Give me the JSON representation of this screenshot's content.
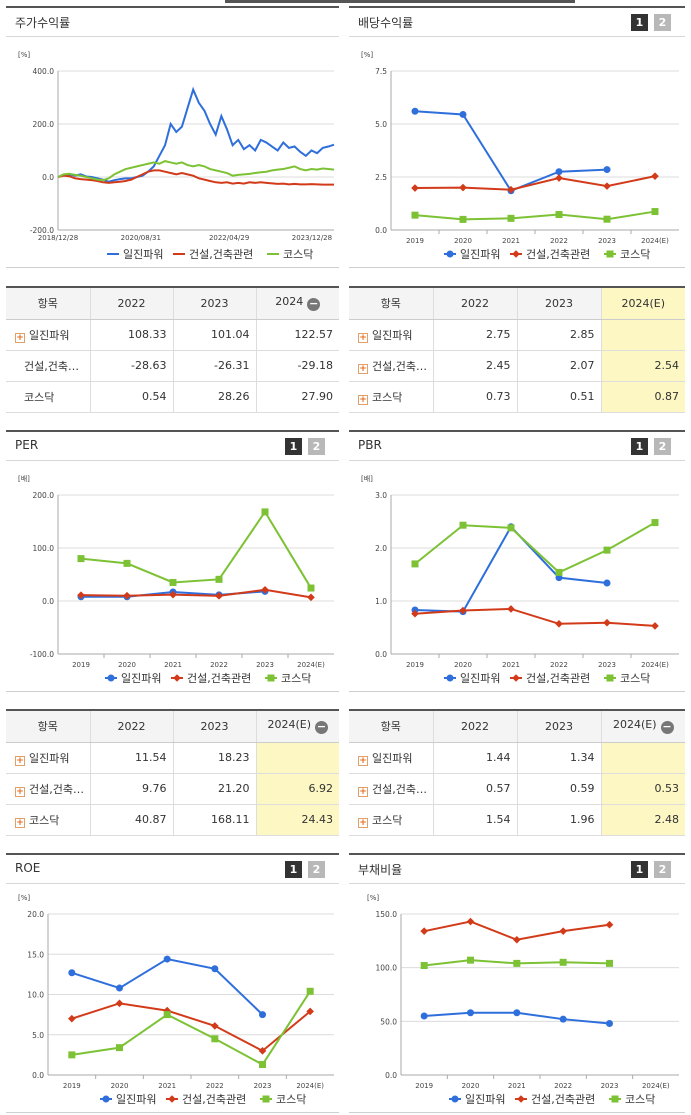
{
  "colors": {
    "ilijn": "#2f6fdc",
    "construction": "#d23b1a",
    "kosdaq": "#7cc234",
    "estimate_bg": "#fdf7c4"
  },
  "tabs": {
    "tab1": "1",
    "tab2": "2"
  },
  "panels": {
    "stock": {
      "title": "주가수익률",
      "unit": "[%]"
    },
    "dividend": {
      "title": "배당수익률",
      "unit": "[%]"
    },
    "per": {
      "title": "PER",
      "unit": "[배]"
    },
    "pbr": {
      "title": "PBR",
      "unit": "[배]"
    },
    "roe": {
      "title": "ROE",
      "unit": "[%]"
    },
    "debt": {
      "title": "부채비율",
      "unit": "[%]"
    }
  },
  "legend": {
    "s1": "일진파워",
    "s2": "건설,건축관련",
    "s3": "코스닥"
  },
  "tables": {
    "stock": {
      "headers": [
        "항목",
        "2022",
        "2023",
        "2024"
      ],
      "rows": [
        {
          "label": "일진파워",
          "values": [
            "108.33",
            "101.04",
            "122.57"
          ]
        },
        {
          "label": "건설,건축…",
          "values": [
            "-28.63",
            "-26.31",
            "-29.18"
          ]
        },
        {
          "label": "코스닥",
          "values": [
            "0.54",
            "28.26",
            "27.90"
          ]
        }
      ]
    },
    "dividend": {
      "headers": [
        "항목",
        "2022",
        "2023",
        "2024(E)"
      ],
      "rows": [
        {
          "label": "일진파워",
          "values": [
            "2.75",
            "2.85",
            ""
          ]
        },
        {
          "label": "건설,건축…",
          "values": [
            "2.45",
            "2.07",
            "2.54"
          ]
        },
        {
          "label": "코스닥",
          "values": [
            "0.73",
            "0.51",
            "0.87"
          ]
        }
      ]
    },
    "per": {
      "headers": [
        "항목",
        "2022",
        "2023",
        "2024(E)"
      ],
      "rows": [
        {
          "label": "일진파워",
          "values": [
            "11.54",
            "18.23",
            ""
          ]
        },
        {
          "label": "건설,건축…",
          "values": [
            "9.76",
            "21.20",
            "6.92"
          ]
        },
        {
          "label": "코스닥",
          "values": [
            "40.87",
            "168.11",
            "24.43"
          ]
        }
      ]
    },
    "pbr": {
      "headers": [
        "항목",
        "2022",
        "2023",
        "2024(E)"
      ],
      "rows": [
        {
          "label": "일진파워",
          "values": [
            "1.44",
            "1.34",
            ""
          ]
        },
        {
          "label": "건설,건축…",
          "values": [
            "0.57",
            "0.59",
            "0.53"
          ]
        },
        {
          "label": "코스닥",
          "values": [
            "1.54",
            "1.96",
            "2.48"
          ]
        }
      ]
    }
  },
  "chart_data": [
    {
      "id": "stock",
      "type": "line",
      "title": "주가수익률",
      "ylabel": "[%]",
      "ylim": [
        -200,
        400
      ],
      "yticks": [
        "400.0",
        "200.0",
        "0.0",
        "-200.0"
      ],
      "xticks": [
        "2018/12/28",
        "2020/08/31",
        "2022/04/29",
        "2023/12/28"
      ],
      "series": [
        {
          "name": "일진파워",
          "values": [
            0,
            8,
            10,
            5,
            10,
            2,
            0,
            -5,
            -10,
            -18,
            -12,
            -8,
            -5,
            -5,
            0,
            5,
            20,
            40,
            80,
            120,
            200,
            170,
            190,
            260,
            330,
            280,
            250,
            200,
            160,
            230,
            180,
            120,
            140,
            105,
            120,
            100,
            140,
            130,
            115,
            100,
            130,
            110,
            115,
            95,
            80,
            100,
            90,
            110,
            115,
            122
          ]
        },
        {
          "name": "건설,건축관련",
          "values": [
            0,
            5,
            3,
            -5,
            -8,
            -10,
            -12,
            -15,
            -20,
            -22,
            -20,
            -18,
            -15,
            -10,
            0,
            10,
            20,
            25,
            25,
            20,
            15,
            10,
            15,
            10,
            5,
            -5,
            -10,
            -15,
            -20,
            -22,
            -20,
            -25,
            -22,
            -25,
            -20,
            -22,
            -20,
            -22,
            -24,
            -26,
            -25,
            -28,
            -26,
            -28,
            -28,
            -27,
            -28,
            -29,
            -29,
            -29
          ]
        },
        {
          "name": "코스닥",
          "values": [
            0,
            10,
            12,
            8,
            5,
            0,
            -5,
            -10,
            -12,
            -5,
            10,
            20,
            30,
            35,
            40,
            45,
            50,
            55,
            50,
            60,
            55,
            50,
            55,
            45,
            40,
            45,
            40,
            30,
            25,
            20,
            15,
            5,
            8,
            10,
            12,
            15,
            18,
            20,
            25,
            28,
            30,
            35,
            40,
            30,
            25,
            30,
            28,
            32,
            30,
            28
          ]
        }
      ]
    },
    {
      "id": "dividend",
      "type": "line",
      "title": "배당수익률",
      "ylabel": "[%]",
      "ylim": [
        0,
        7.5
      ],
      "yticks": [
        "7.5",
        "5.0",
        "2.5",
        "0.0"
      ],
      "categories": [
        "2019",
        "2020",
        "2021",
        "2022",
        "2023",
        "2024(E)"
      ],
      "series": [
        {
          "name": "일진파워",
          "values": [
            5.6,
            5.45,
            1.85,
            2.75,
            2.85,
            null
          ]
        },
        {
          "name": "건설,건축관련",
          "values": [
            1.98,
            2.0,
            1.9,
            2.45,
            2.07,
            2.54
          ]
        },
        {
          "name": "코스닥",
          "values": [
            0.7,
            0.5,
            0.55,
            0.73,
            0.51,
            0.87
          ]
        }
      ]
    },
    {
      "id": "per",
      "type": "line",
      "title": "PER",
      "ylabel": "[배]",
      "ylim": [
        -100,
        200
      ],
      "yticks": [
        "200.0",
        "100.0",
        "0.0",
        "-100.0"
      ],
      "categories": [
        "2019",
        "2020",
        "2021",
        "2022",
        "2023",
        "2024(E)"
      ],
      "series": [
        {
          "name": "일진파워",
          "values": [
            8,
            8,
            17,
            11.54,
            18.23,
            null
          ]
        },
        {
          "name": "건설,건축관련",
          "values": [
            11,
            10,
            12,
            9.76,
            21.2,
            6.92
          ]
        },
        {
          "name": "코스닥",
          "values": [
            80,
            71,
            35,
            40.87,
            168.11,
            24.43
          ]
        }
      ]
    },
    {
      "id": "pbr",
      "type": "line",
      "title": "PBR",
      "ylabel": "[배]",
      "ylim": [
        0,
        3
      ],
      "yticks": [
        "3.0",
        "2.0",
        "1.0",
        "0.0"
      ],
      "categories": [
        "2019",
        "2020",
        "2021",
        "2022",
        "2023",
        "2024(E)"
      ],
      "series": [
        {
          "name": "일진파워",
          "values": [
            0.83,
            0.8,
            2.4,
            1.44,
            1.34,
            null
          ]
        },
        {
          "name": "건설,건축관련",
          "values": [
            0.76,
            0.82,
            0.85,
            0.57,
            0.59,
            0.53
          ]
        },
        {
          "name": "코스닥",
          "values": [
            1.7,
            2.43,
            2.38,
            1.54,
            1.96,
            2.48
          ]
        }
      ]
    },
    {
      "id": "roe",
      "type": "line",
      "title": "ROE",
      "ylabel": "[%]",
      "ylim": [
        0,
        20
      ],
      "yticks": [
        "20.0",
        "15.0",
        "10.0",
        "5.0",
        "0.0"
      ],
      "categories": [
        "2019",
        "2020",
        "2021",
        "2022",
        "2023",
        "2024(E)"
      ],
      "series": [
        {
          "name": "일진파워",
          "values": [
            12.7,
            10.8,
            14.4,
            13.2,
            7.5,
            null
          ]
        },
        {
          "name": "건설,건축관련",
          "values": [
            7.0,
            8.9,
            8.0,
            6.1,
            3.0,
            7.9
          ]
        },
        {
          "name": "코스닥",
          "values": [
            2.5,
            3.4,
            7.5,
            4.5,
            1.3,
            10.4
          ]
        }
      ]
    },
    {
      "id": "debt",
      "type": "line",
      "title": "부채비율",
      "ylabel": "[%]",
      "ylim": [
        0,
        150
      ],
      "yticks": [
        "150.0",
        "100.0",
        "50.0",
        "0.0"
      ],
      "categories": [
        "2019",
        "2020",
        "2021",
        "2022",
        "2023",
        "2024(E)"
      ],
      "series": [
        {
          "name": "일진파워",
          "values": [
            55,
            58,
            58,
            52,
            48,
            null
          ]
        },
        {
          "name": "건설,건축관련",
          "values": [
            134,
            143,
            126,
            134,
            140,
            null
          ]
        },
        {
          "name": "코스닥",
          "values": [
            102,
            107,
            104,
            105,
            104,
            null
          ]
        }
      ]
    }
  ]
}
